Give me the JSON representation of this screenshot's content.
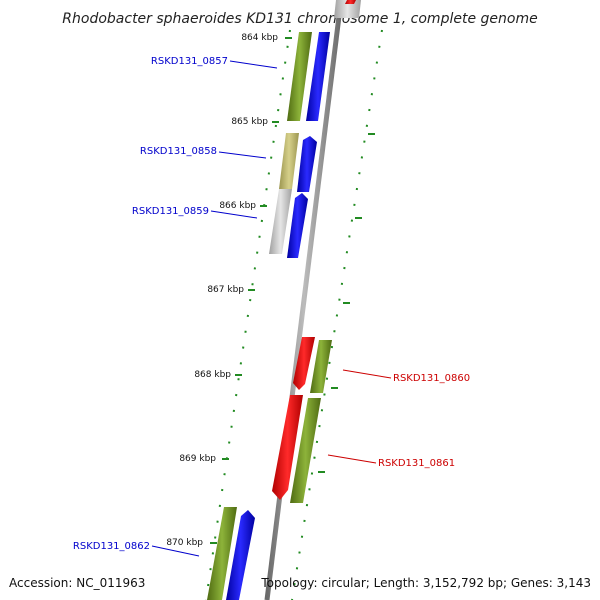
{
  "title": "Rhodobacter sphaeroides KD131 chromosome 1, complete genome",
  "accession": "Accession: NC_011963",
  "topology": "Topology: circular; Length: 3,152,792 bp; Genes: 3,143",
  "ticks": [
    "864 kbp",
    "865 kbp",
    "866 kbp",
    "867 kbp",
    "868 kbp",
    "869 kbp",
    "870 kbp"
  ],
  "genes": [
    {
      "name": "RSKD131_0857",
      "color": "#0000cc"
    },
    {
      "name": "RSKD131_0858",
      "color": "#0000cc"
    },
    {
      "name": "RSKD131_0859",
      "color": "#0000cc"
    },
    {
      "name": "RSKD131_0860",
      "color": "#cc0000"
    },
    {
      "name": "RSKD131_0861",
      "color": "#cc0000"
    },
    {
      "name": "RSKD131_0862",
      "color": "#0000cc"
    }
  ],
  "colors": {
    "forward_strand": "#0000ee",
    "reverse_strand": "#ee0000",
    "cds_green": "#6b8e23",
    "cds_khaki": "#bdb76b",
    "cds_gray": "#c0c0c0",
    "backbone": "#808080",
    "tick_marks": "#228b22"
  }
}
